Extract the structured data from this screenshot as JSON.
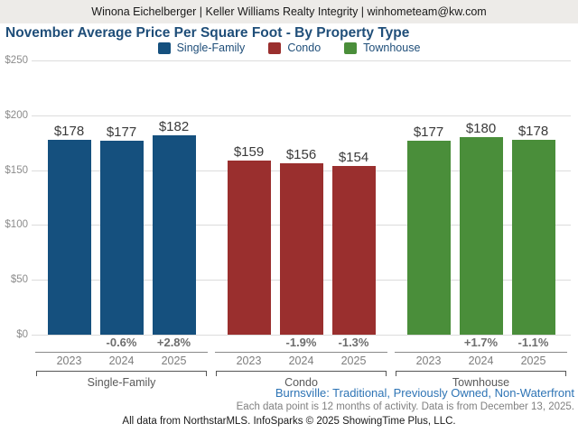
{
  "header": {
    "text": "Winona Eichelberger | Keller Williams Realty Integrity | winhometeam@kw.com"
  },
  "title": "November Average Price Per Square Foot - By Property Type",
  "legend": [
    {
      "label": "Single-Family",
      "color": "#15507E"
    },
    {
      "label": "Condo",
      "color": "#9A2F2E"
    },
    {
      "label": "Townhouse",
      "color": "#4A8E3A"
    }
  ],
  "chart_data": {
    "type": "bar",
    "title": "November Average Price Per Square Foot - By Property Type",
    "categories": [
      "2023",
      "2024",
      "2025"
    ],
    "series": [
      {
        "name": "Single-Family",
        "color": "#15507E",
        "values": [
          178,
          177,
          182
        ],
        "value_labels": [
          "$178",
          "$177",
          "$182"
        ],
        "pct_change": [
          "",
          "-0.6%",
          "+2.8%"
        ]
      },
      {
        "name": "Condo",
        "color": "#9A2F2E",
        "values": [
          159,
          156,
          154
        ],
        "value_labels": [
          "$159",
          "$156",
          "$154"
        ],
        "pct_change": [
          "",
          "-1.9%",
          "-1.3%"
        ]
      },
      {
        "name": "Townhouse",
        "color": "#4A8E3A",
        "values": [
          177,
          180,
          178
        ],
        "value_labels": [
          "$177",
          "$180",
          "$178"
        ],
        "pct_change": [
          "",
          "+1.7%",
          "-1.1%"
        ]
      }
    ],
    "ylim": [
      0,
      250
    ],
    "yticks": [
      {
        "label": "$0",
        "value": 0
      },
      {
        "label": "$50",
        "value": 50
      },
      {
        "label": "$100",
        "value": 100
      },
      {
        "label": "$150",
        "value": 150
      },
      {
        "label": "$200",
        "value": 200
      },
      {
        "label": "$250",
        "value": 250
      }
    ],
    "grid": true,
    "legend_position": "top"
  },
  "footer": {
    "location_line": "Burnsville: Traditional, Previously Owned, Non-Waterfront",
    "data_note": "Each data point is 12 months of activity. Data is from December 13, 2025.",
    "attribution": "All data from NorthstarMLS. InfoSparks © 2025 ShowingTime Plus, LLC."
  }
}
